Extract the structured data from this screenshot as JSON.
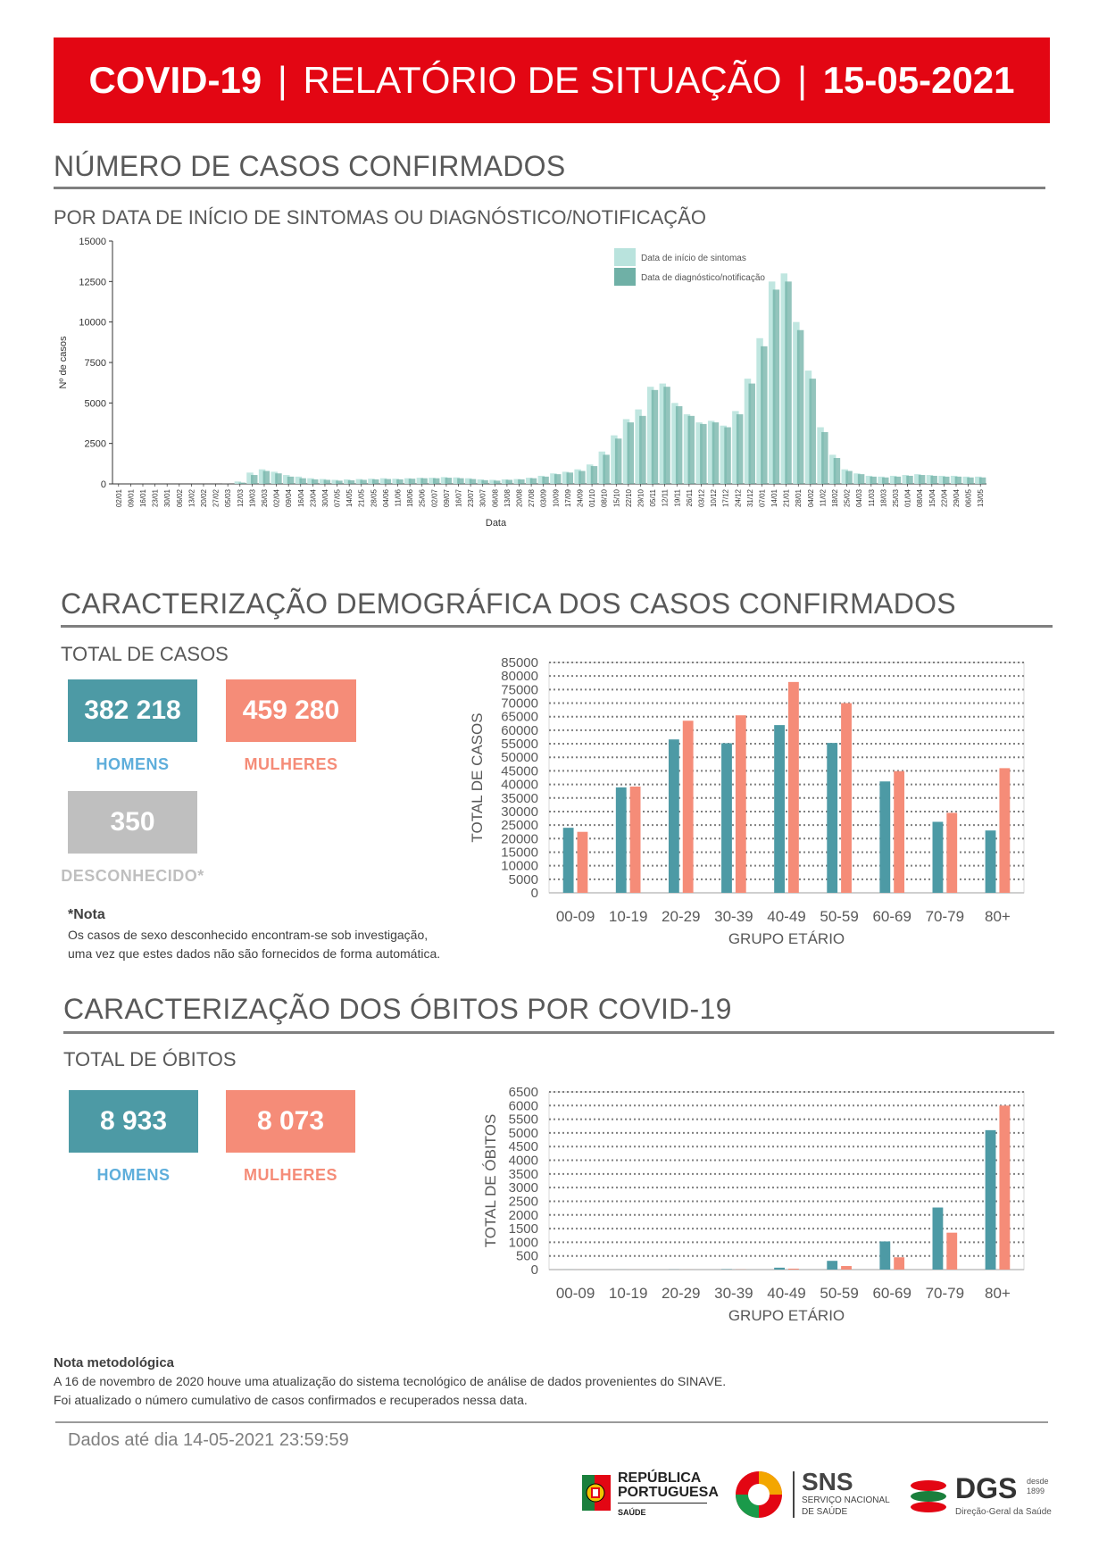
{
  "header": {
    "covid": "COVID-19",
    "bar1": "|",
    "report": "RELATÓRIO DE SITUAÇÃO",
    "bar2": "|",
    "date": "15-05-2021"
  },
  "section_cases": {
    "title": "NÚMERO DE CASOS CONFIRMADOS",
    "subtitle": "POR DATA DE INÍCIO DE SINTOMAS OU DIAGNÓSTICO/NOTIFICAÇÃO"
  },
  "section_demo": {
    "title": "CARACTERIZAÇÃO DEMOGRÁFICA DOS CASOS CONFIRMADOS",
    "total_label": "TOTAL DE CASOS",
    "men_value": "382 218",
    "men_label": "HOMENS",
    "women_value": "459 280",
    "women_label": "MULHERES",
    "unknown_value": "350",
    "unknown_label": "DESCONHECIDO*",
    "note_title": "*Nota",
    "note_line1": "Os casos de sexo desconhecido encontram-se sob investigação,",
    "note_line2": "uma vez que estes dados não são fornecidos de forma automática."
  },
  "section_deaths": {
    "title": "CARACTERIZAÇÃO DOS ÓBITOS POR COVID-19",
    "total_label": "TOTAL DE ÓBITOS",
    "men_value": "8 933",
    "men_label": "HOMENS",
    "women_value": "8 073",
    "women_label": "MULHERES"
  },
  "method_note": {
    "title": "Nota metodológica",
    "line1": "A 16 de novembro de 2020 houve uma atualização do sistema tecnológico de análise de dados provenientes do SINAVE.",
    "line2": "Foi atualizado o número cumulativo de casos confirmados e recuperados nessa data."
  },
  "footer": {
    "data_until": "Dados até dia 14-05-2021 23:59:59",
    "logo1_line1": "REPÚBLICA",
    "logo1_line2": "PORTUGUESA",
    "logo1_line3": "SAÚDE",
    "logo2_title": "SNS",
    "logo2_line1": "SERVIÇO NACIONAL",
    "logo2_line2": "DE SAÚDE",
    "logo3_title": "DGS",
    "logo3_since1": "desde",
    "logo3_since2": "1899",
    "logo3_sub": "Direção-Geral da Saúde"
  },
  "colors": {
    "banner": "#e30613",
    "men": "#4d9aa5",
    "women": "#f58c78",
    "unknown": "#bfbfbf",
    "symptoms": "#b9e3dd",
    "diagnosis": "#6fb0a6"
  },
  "chart_data": [
    {
      "type": "bar",
      "ylabel": "Nº de casos",
      "xlabel": "Data",
      "ylim": [
        0,
        15000
      ],
      "yticks": [
        "0",
        "2500",
        "5000",
        "7500",
        "10000",
        "12500",
        "15000"
      ],
      "legend_position": "top-right",
      "legend": [
        "Data de início de sintomas",
        "Data de diagnóstico/notificação"
      ],
      "x": [
        "02/01",
        "09/01",
        "16/01",
        "23/01",
        "30/01",
        "06/02",
        "13/02",
        "20/02",
        "27/02",
        "05/03",
        "12/03",
        "19/03",
        "26/03",
        "02/04",
        "09/04",
        "16/04",
        "23/04",
        "30/04",
        "07/05",
        "14/05",
        "21/05",
        "28/05",
        "04/06",
        "11/06",
        "18/06",
        "25/06",
        "02/07",
        "09/07",
        "16/07",
        "23/07",
        "30/07",
        "06/08",
        "13/08",
        "20/08",
        "27/08",
        "03/09",
        "10/09",
        "17/09",
        "24/09",
        "01/10",
        "08/10",
        "15/10",
        "22/10",
        "29/10",
        "05/11",
        "12/11",
        "19/11",
        "26/11",
        "03/12",
        "10/12",
        "17/12",
        "24/12",
        "31/12",
        "07/01",
        "14/01",
        "21/01",
        "28/01",
        "04/02",
        "11/02",
        "18/02",
        "25/02",
        "04/03",
        "11/03",
        "18/03",
        "25/03",
        "01/04",
        "08/04",
        "15/04",
        "22/04",
        "29/04",
        "06/05",
        "13/05"
      ],
      "series": [
        {
          "name": "Data de início de sintomas",
          "values": [
            0,
            0,
            0,
            0,
            0,
            0,
            0,
            0,
            0,
            5,
            150,
            700,
            900,
            750,
            550,
            450,
            350,
            300,
            250,
            280,
            300,
            320,
            350,
            320,
            350,
            380,
            380,
            420,
            400,
            350,
            280,
            250,
            280,
            300,
            380,
            500,
            650,
            750,
            900,
            1200,
            2000,
            3000,
            4000,
            4600,
            6000,
            6200,
            5000,
            4300,
            3800,
            3900,
            3600,
            4500,
            6500,
            9000,
            12500,
            13000,
            10000,
            7000,
            3500,
            1800,
            900,
            650,
            500,
            450,
            500,
            550,
            600,
            550,
            500,
            500,
            450,
            450
          ]
        },
        {
          "name": "Data de diagnóstico/notificação",
          "values": [
            0,
            0,
            0,
            0,
            0,
            0,
            0,
            0,
            0,
            0,
            80,
            550,
            800,
            650,
            450,
            350,
            280,
            250,
            200,
            220,
            250,
            280,
            300,
            280,
            320,
            350,
            350,
            380,
            350,
            300,
            230,
            200,
            250,
            280,
            350,
            450,
            600,
            700,
            800,
            1100,
            1800,
            2800,
            3800,
            4200,
            5800,
            6000,
            4800,
            4200,
            3700,
            3800,
            3500,
            4300,
            6200,
            8500,
            12000,
            12500,
            9500,
            6500,
            3200,
            1600,
            800,
            600,
            450,
            400,
            450,
            500,
            550,
            500,
            450,
            450,
            400,
            400
          ]
        }
      ]
    },
    {
      "type": "bar",
      "ylabel": "TOTAL DE CASOS",
      "xlabel": "GRUPO ETÁRIO",
      "ylim": [
        0,
        85000
      ],
      "categories": [
        "00-09",
        "10-19",
        "20-29",
        "30-39",
        "40-49",
        "50-59",
        "60-69",
        "70-79",
        "80+"
      ],
      "series": [
        {
          "name": "HOMENS",
          "values": [
            24000,
            38900,
            56600,
            55200,
            61900,
            55300,
            41100,
            26200,
            23000
          ]
        },
        {
          "name": "MULHERES",
          "values": [
            22500,
            39200,
            63500,
            65500,
            77800,
            70000,
            44900,
            29500,
            46000
          ]
        }
      ]
    },
    {
      "type": "bar",
      "ylabel": "TOTAL DE ÓBITOS",
      "xlabel": "GRUPO ETÁRIO",
      "ylim": [
        0,
        6500
      ],
      "categories": [
        "00-09",
        "10-19",
        "20-29",
        "30-39",
        "40-49",
        "50-59",
        "60-69",
        "70-79",
        "80+"
      ],
      "series": [
        {
          "name": "HOMENS",
          "values": [
            1,
            1,
            4,
            12,
            70,
            320,
            1030,
            2270,
            5100
          ]
        },
        {
          "name": "MULHERES",
          "values": [
            1,
            1,
            2,
            6,
            35,
            130,
            450,
            1350,
            6000
          ]
        }
      ]
    }
  ]
}
